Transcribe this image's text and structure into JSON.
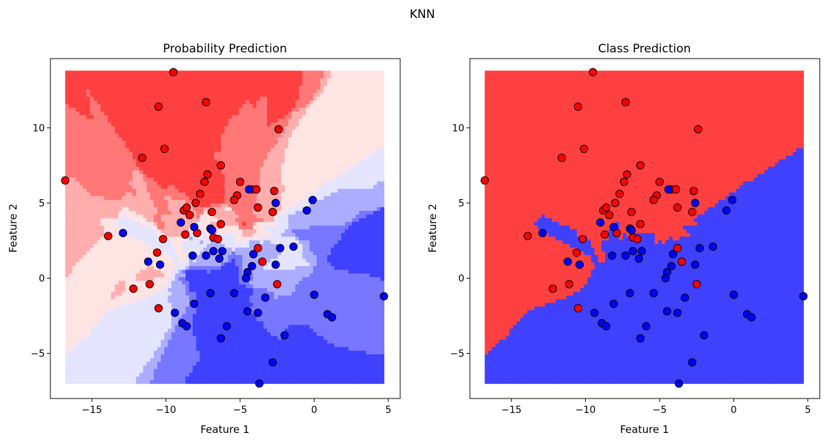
{
  "figure": {
    "suptitle": "KNN"
  },
  "chart_data": [
    {
      "type": "scatter",
      "title": "Probability Prediction",
      "xlabel": "Feature 1",
      "ylabel": "Feature 2",
      "xlim": [
        -17.8,
        5.8
      ],
      "ylim": [
        -8.0,
        14.6
      ],
      "xticks": [
        -15,
        -10,
        -5,
        0,
        5
      ],
      "xtick_labels": [
        "−15",
        "−10",
        "−5",
        "0",
        "5"
      ],
      "yticks": [
        -5,
        0,
        5,
        10
      ],
      "ytick_labels": [
        "−5",
        "0",
        "5",
        "10"
      ],
      "background": "probability-map",
      "region": {
        "x": [
          -16.8,
          4.7
        ],
        "y": [
          -7.0,
          13.8
        ]
      },
      "grid": false,
      "colors": {
        "class_0": "#ff0000",
        "class_1": "#0000ff",
        "edge": "#000000"
      }
    },
    {
      "type": "scatter",
      "title": "Class Prediction",
      "xlabel": "Feature 1",
      "ylabel": "Feature 2",
      "xlim": [
        -17.8,
        5.8
      ],
      "ylim": [
        -8.0,
        14.6
      ],
      "xticks": [
        -15,
        -10,
        -5,
        0,
        5
      ],
      "xtick_labels": [
        "−15",
        "−10",
        "−5",
        "0",
        "5"
      ],
      "yticks": [
        -5,
        0,
        5,
        10
      ],
      "ytick_labels": [
        "−5",
        "0",
        "5",
        "10"
      ],
      "background": "class-map",
      "region": {
        "x": [
          -16.8,
          4.7
        ],
        "y": [
          -7.0,
          13.8
        ]
      },
      "grid": false,
      "colors": {
        "class_0": "#ff4040",
        "class_1": "#4040ff",
        "edge": "#000000"
      }
    }
  ],
  "points": {
    "red": [
      [
        -9.5,
        13.7
      ],
      [
        -10.5,
        11.4
      ],
      [
        -7.3,
        11.7
      ],
      [
        -2.4,
        9.9
      ],
      [
        -10.1,
        8.6
      ],
      [
        -11.6,
        8.0
      ],
      [
        -6.3,
        7.5
      ],
      [
        -16.8,
        6.5
      ],
      [
        -7.2,
        6.9
      ],
      [
        -5.0,
        6.4
      ],
      [
        -7.4,
        6.4
      ],
      [
        -4.2,
        5.9
      ],
      [
        -3.9,
        5.9
      ],
      [
        -2.7,
        5.8
      ],
      [
        -7.7,
        5.6
      ],
      [
        -5.2,
        5.5
      ],
      [
        -5.4,
        5.2
      ],
      [
        -8.0,
        5.0
      ],
      [
        -3.8,
        4.7
      ],
      [
        -8.8,
        4.5
      ],
      [
        -8.6,
        4.7
      ],
      [
        -6.9,
        4.4
      ],
      [
        -2.8,
        4.4
      ],
      [
        -8.4,
        4.2
      ],
      [
        -6.3,
        3.6
      ],
      [
        -8.7,
        2.9
      ],
      [
        -7.9,
        3.0
      ],
      [
        -13.9,
        2.8
      ],
      [
        -10.2,
        2.6
      ],
      [
        -6.8,
        2.7
      ],
      [
        -6.5,
        2.6
      ],
      [
        -3.8,
        2.0
      ],
      [
        -10.6,
        1.7
      ],
      [
        -3.5,
        1.1
      ],
      [
        -2.5,
        -0.4
      ],
      [
        -11.1,
        -0.4
      ],
      [
        -12.2,
        -0.7
      ],
      [
        -10.5,
        -2.0
      ]
    ],
    "blue": [
      [
        -12.9,
        3.0
      ],
      [
        -0.1,
        5.2
      ],
      [
        -0.5,
        4.5
      ],
      [
        -2.6,
        5.0
      ],
      [
        -4.4,
        5.9
      ],
      [
        -9.0,
        3.7
      ],
      [
        -8.1,
        3.4
      ],
      [
        -7.0,
        3.3
      ],
      [
        -6.9,
        3.2
      ],
      [
        -4.1,
        1.6
      ],
      [
        -1.4,
        2.1
      ],
      [
        -2.3,
        2.0
      ],
      [
        -6.8,
        1.8
      ],
      [
        -6.2,
        1.8
      ],
      [
        -7.3,
        1.5
      ],
      [
        -8.2,
        1.5
      ],
      [
        -6.4,
        1.3
      ],
      [
        -11.2,
        1.1
      ],
      [
        -10.4,
        0.9
      ],
      [
        -2.6,
        0.9
      ],
      [
        -4.2,
        0.8
      ],
      [
        -4.5,
        0.4
      ],
      [
        -4.6,
        0.0
      ],
      [
        -7.0,
        -1.0
      ],
      [
        -5.4,
        -1.0
      ],
      [
        -3.3,
        -1.3
      ],
      [
        0.0,
        -1.1
      ],
      [
        4.7,
        -1.2
      ],
      [
        -8.1,
        -1.7
      ],
      [
        -9.4,
        -2.3
      ],
      [
        -4.5,
        -2.2
      ],
      [
        -3.8,
        -2.3
      ],
      [
        0.9,
        -2.4
      ],
      [
        -2.0,
        -3.8
      ],
      [
        -6.3,
        -4.0
      ],
      [
        -5.9,
        -3.2
      ],
      [
        -8.9,
        -3.0
      ],
      [
        -8.6,
        -3.2
      ],
      [
        1.2,
        -2.6
      ],
      [
        -2.8,
        -5.6
      ],
      [
        -3.7,
        -7.0
      ]
    ]
  },
  "panels": [
    {
      "title": "Probability Prediction",
      "xlabel": "Feature 1",
      "ylabel": "Feature 2"
    },
    {
      "title": "Class Prediction",
      "xlabel": "Feature 1",
      "ylabel": "Feature 2"
    }
  ]
}
